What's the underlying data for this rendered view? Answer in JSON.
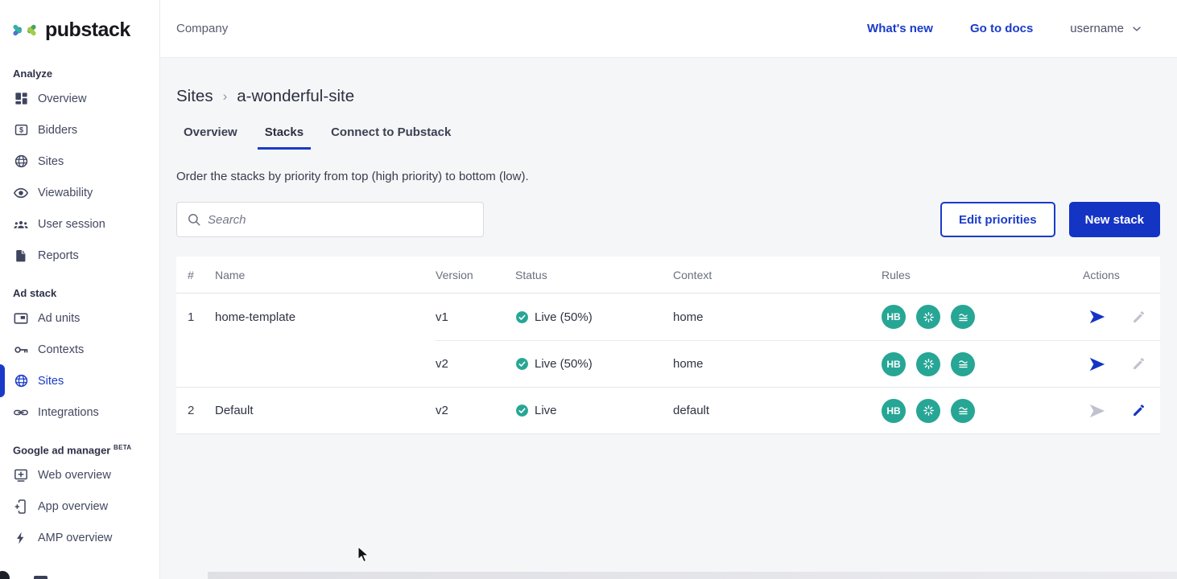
{
  "brand": {
    "name": "pubstack"
  },
  "header": {
    "company_label": "Company",
    "whats_new": "What's new",
    "go_to_docs": "Go to docs",
    "username": "username"
  },
  "sidebar": {
    "sections": [
      {
        "title": "Analyze",
        "badge": "",
        "items": [
          {
            "label": "Overview",
            "icon": "dashboard-icon",
            "active": false
          },
          {
            "label": "Bidders",
            "icon": "bidders-icon",
            "active": false
          },
          {
            "label": "Sites",
            "icon": "globe-icon",
            "active": false
          },
          {
            "label": "Viewability",
            "icon": "eye-icon",
            "active": false
          },
          {
            "label": "User session",
            "icon": "users-icon",
            "active": false
          },
          {
            "label": "Reports",
            "icon": "report-icon",
            "active": false
          }
        ]
      },
      {
        "title": "Ad stack",
        "badge": "",
        "items": [
          {
            "label": "Ad units",
            "icon": "ad-units-icon",
            "active": false
          },
          {
            "label": "Contexts",
            "icon": "key-icon",
            "active": false
          },
          {
            "label": "Sites",
            "icon": "globe-icon",
            "active": true
          },
          {
            "label": "Integrations",
            "icon": "link-icon",
            "active": false
          }
        ]
      },
      {
        "title": "Google ad manager",
        "badge": "BETA",
        "items": [
          {
            "label": "Web overview",
            "icon": "web-overview-icon",
            "active": false
          },
          {
            "label": "App overview",
            "icon": "app-overview-icon",
            "active": false
          },
          {
            "label": "AMP overview",
            "icon": "bolt-icon",
            "active": false
          }
        ]
      }
    ]
  },
  "page": {
    "breadcrumb_root": "Sites",
    "breadcrumb_sep": "›",
    "breadcrumb_current": "a-wonderful-site",
    "tabs": [
      {
        "label": "Overview",
        "active": false
      },
      {
        "label": "Stacks",
        "active": true
      },
      {
        "label": "Connect to Pubstack",
        "active": false
      }
    ],
    "description": "Order the stacks by priority from top (high priority) to bottom (low).",
    "search_placeholder": "Search",
    "edit_priorities_label": "Edit priorities",
    "new_stack_label": "New stack"
  },
  "table": {
    "columns": [
      "#",
      "Name",
      "Version",
      "Status",
      "Context",
      "Rules",
      "Actions"
    ],
    "rules_badges": [
      {
        "icon": "hb-badge",
        "text": "HB"
      },
      {
        "icon": "spinner-badge",
        "text": ""
      },
      {
        "icon": "waves-badge",
        "text": ""
      }
    ],
    "groups": [
      {
        "num": "1",
        "name": "home-template",
        "rows": [
          {
            "version": "v1",
            "status": "Live (50%)",
            "context": "home",
            "send_enabled": true,
            "edit_enabled": false
          },
          {
            "version": "v2",
            "status": "Live (50%)",
            "context": "home",
            "send_enabled": true,
            "edit_enabled": false
          }
        ]
      },
      {
        "num": "2",
        "name": "Default",
        "rows": [
          {
            "version": "v2",
            "status": "Live",
            "context": "default",
            "send_enabled": false,
            "edit_enabled": true
          }
        ]
      }
    ]
  },
  "colors": {
    "accent_blue": "#1a3bc8",
    "button_blue": "#1434c3",
    "teal": "#27a695",
    "logo_light_green": "#a6cb47",
    "logo_blue": "#4f74c9",
    "logo_green": "#47a45c",
    "logo_teal": "#32b3a2"
  }
}
